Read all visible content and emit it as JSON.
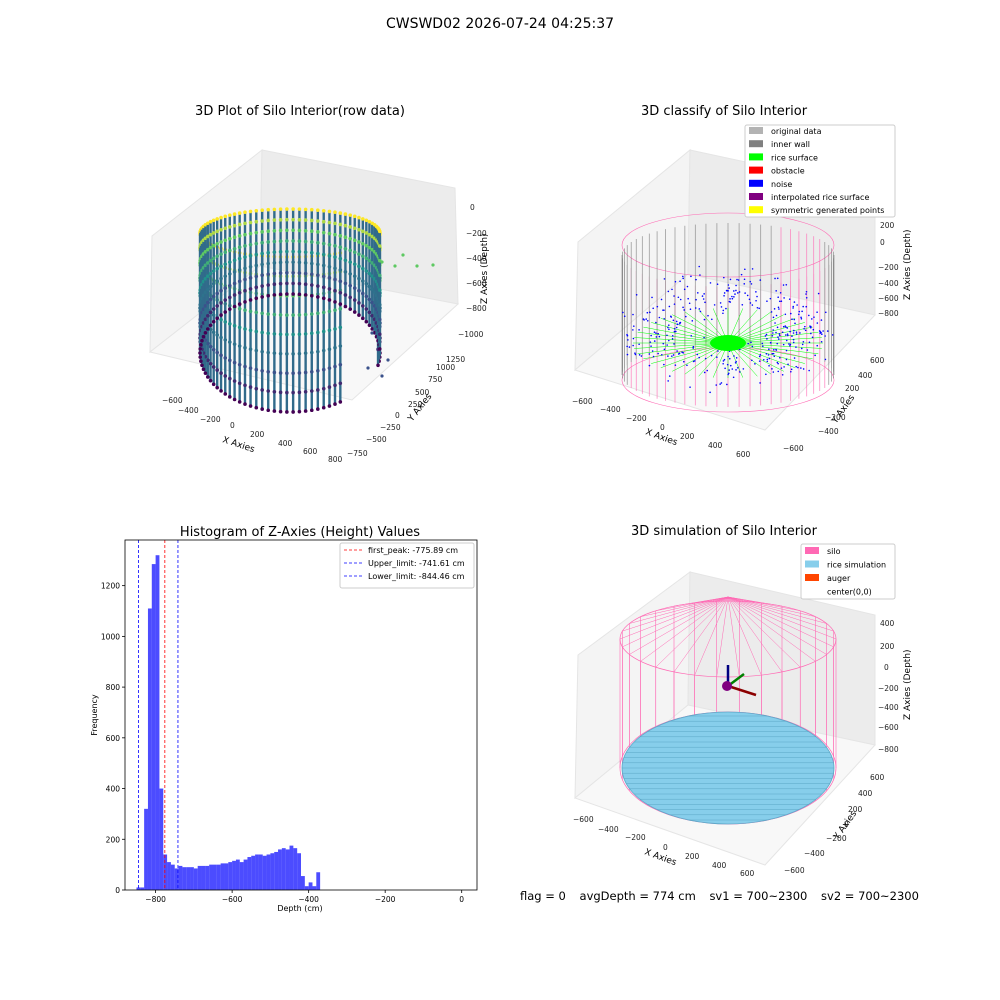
{
  "suptitle": "CWSWD02 2026-07-24 04:25:37",
  "panels": {
    "raw": {
      "title": "3D Plot of Silo Interior(row data)",
      "xlabel": "X Axies",
      "ylabel": "Y Axies",
      "zlabel": "Z Axies (Depth)",
      "xticks": [
        "−600",
        "−400",
        "−200",
        "0",
        "200",
        "400",
        "600",
        "800"
      ],
      "yticks": [
        "−750",
        "−500",
        "−250",
        "0",
        "250",
        "500",
        "750",
        "1000",
        "1250"
      ],
      "zticks": [
        "0",
        "−200",
        "−400",
        "−600",
        "−800",
        "−1000"
      ]
    },
    "classify": {
      "title": "3D classify of Silo Interior",
      "xlabel": "X Axies",
      "ylabel": "Y Axies",
      "zlabel": "Z Axies (Depth)",
      "xticks": [
        "−600",
        "−400",
        "−200",
        "0",
        "200",
        "400",
        "600"
      ],
      "yticks": [
        "−600",
        "−400",
        "−200",
        "0",
        "200",
        "400",
        "600"
      ],
      "zticks": [
        "200",
        "0",
        "−200",
        "−400",
        "−600",
        "−800"
      ],
      "legend": [
        {
          "label": "original data",
          "color": "#b3b3b3"
        },
        {
          "label": "inner wall",
          "color": "#808080"
        },
        {
          "label": "rice surface",
          "color": "#00ff00"
        },
        {
          "label": "obstacle",
          "color": "#ff0000"
        },
        {
          "label": "noise",
          "color": "#0000ff"
        },
        {
          "label": "interpolated rice surface",
          "color": "#800080"
        },
        {
          "label": "symmetric generated points",
          "color": "#ffff00"
        }
      ]
    },
    "simulation": {
      "title": "3D simulation of Silo Interior",
      "xlabel": "X Axies",
      "ylabel": "Y Axies",
      "zlabel": "Z Axies (Depth)",
      "xticks": [
        "−600",
        "−400",
        "−200",
        "0",
        "200",
        "400",
        "600"
      ],
      "yticks": [
        "−600",
        "−400",
        "−200",
        "0",
        "200",
        "400",
        "600"
      ],
      "zticks": [
        "400",
        "200",
        "0",
        "−200",
        "−400",
        "−600",
        "−800"
      ],
      "legend": [
        {
          "label": "silo",
          "color": "#ff69b4"
        },
        {
          "label": "rice simulation",
          "color": "#87ceeb"
        },
        {
          "label": "auger",
          "color": "#ff4500"
        },
        {
          "label": "center(0,0)",
          "color": "#ffffff"
        }
      ]
    }
  },
  "footer": {
    "flag": "flag = 0",
    "avg": "avgDepth = 774 cm",
    "sv1": "sv1 = 700~2300",
    "sv2": "sv2 = 700~2300"
  },
  "chart_data": [
    {
      "type": "bar",
      "title": "Histogram of Z-Axies (Height) Values",
      "xlabel": "Depth (cm)",
      "ylabel": "Frequency",
      "xlim": [
        -880,
        40
      ],
      "ylim": [
        0,
        1380
      ],
      "bin_width": 10,
      "bin_start": -850,
      "values": [
        10,
        10,
        320,
        1110,
        1285,
        1320,
        400,
        140,
        110,
        100,
        85,
        95,
        90,
        90,
        90,
        85,
        95,
        95,
        95,
        100,
        100,
        100,
        105,
        105,
        110,
        115,
        120,
        110,
        120,
        130,
        135,
        140,
        140,
        135,
        140,
        145,
        150,
        160,
        165,
        160,
        175,
        165,
        145,
        55,
        15,
        30,
        15,
        70
      ],
      "bar_color": "#0000ff",
      "xticks": [
        -800,
        -600,
        -400,
        -200,
        0
      ],
      "yticks": [
        0,
        200,
        400,
        600,
        800,
        1000,
        1200
      ],
      "vlines": [
        {
          "label": "first_peak: -775.89 cm",
          "x": -775.89,
          "color": "#ff0000"
        },
        {
          "label": "Upper_limit: -741.61 cm",
          "x": -741.61,
          "color": "#0000ff"
        },
        {
          "label": "Lower_limit: -844.46 cm",
          "x": -844.46,
          "color": "#0000ff"
        }
      ],
      "legend_position": "top-right"
    }
  ]
}
